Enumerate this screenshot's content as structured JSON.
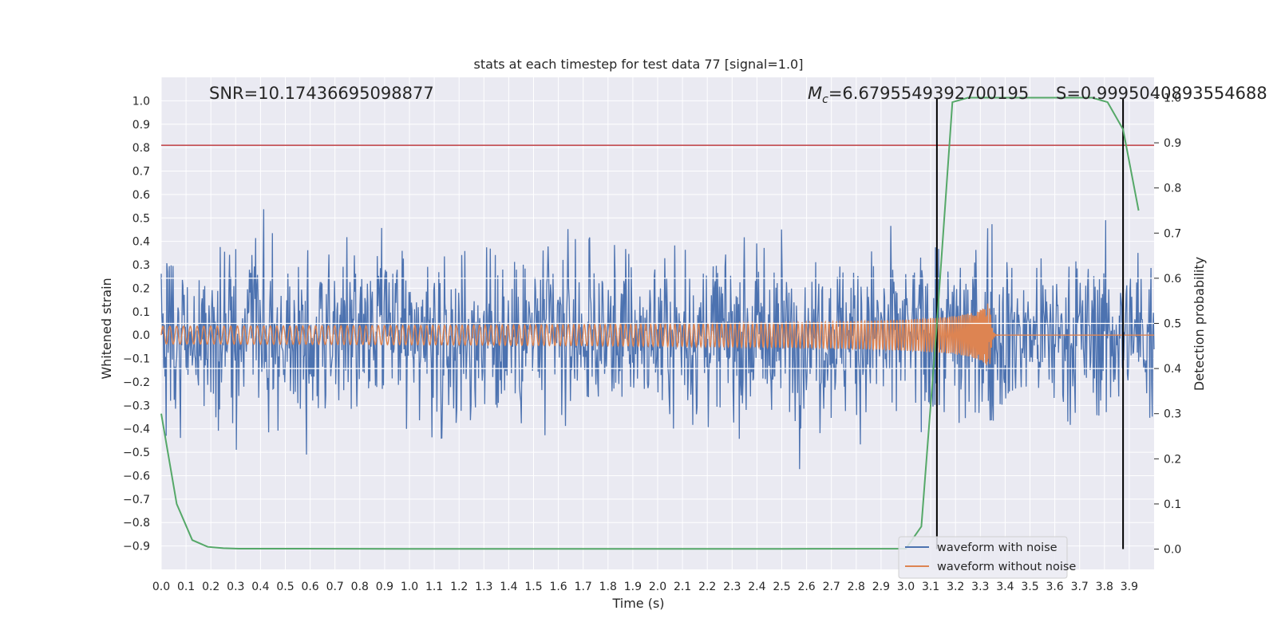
{
  "chart_data": {
    "type": "line",
    "title": "stats at each timestep for test data 77 [signal=1.0]",
    "xlabel": "Time (s)",
    "ylabel": "Whitened strain",
    "y2label": "Detection probability",
    "xlim": [
      0.0,
      4.0
    ],
    "ylim": [
      -1.0,
      1.1
    ],
    "y2lim": [
      -0.045,
      1.045
    ],
    "xticks": [
      "0.0",
      "0.1",
      "0.2",
      "0.3",
      "0.4",
      "0.5",
      "0.6",
      "0.7",
      "0.8",
      "0.9",
      "1.0",
      "1.1",
      "1.2",
      "1.3",
      "1.4",
      "1.5",
      "1.6",
      "1.7",
      "1.8",
      "1.9",
      "2.0",
      "2.1",
      "2.2",
      "2.3",
      "2.4",
      "2.5",
      "2.6",
      "2.7",
      "2.8",
      "2.9",
      "3.0",
      "3.1",
      "3.2",
      "3.3",
      "3.4",
      "3.5",
      "3.6",
      "3.7",
      "3.8",
      "3.9"
    ],
    "yticks": [
      "1.0",
      "0.9",
      "0.8",
      "0.7",
      "0.6",
      "0.5",
      "0.4",
      "0.3",
      "0.2",
      "0.1",
      "0.0",
      "−0.1",
      "−0.2",
      "−0.3",
      "−0.4",
      "−0.5",
      "−0.6",
      "−0.7",
      "−0.8",
      "−0.9"
    ],
    "y2ticks": [
      "1.0",
      "0.9",
      "0.8",
      "0.7",
      "0.6",
      "0.5",
      "0.4",
      "0.3",
      "0.2",
      "0.1",
      "0.0"
    ],
    "annotations": {
      "snr": "SNR=10.17436695098877",
      "mc_symbol": "M",
      "mc_sub": "c",
      "mc_value": "=6.6795549392700195",
      "s": "S=0.9995040893554688"
    },
    "threshold_line": {
      "axis": "y",
      "value": 0.81,
      "color": "#c44e52"
    },
    "vertical_lines": [
      3.125,
      3.875
    ],
    "secondary_hlines": [
      0.6,
      0.5,
      0.4
    ],
    "detection_probability": {
      "name": "detection probability",
      "axis": "y2",
      "color": "#55a868",
      "x": [
        0.0,
        0.0625,
        0.125,
        0.1875,
        0.25,
        0.3125,
        0.5,
        1.0,
        2.0,
        2.5,
        3.0,
        3.0625,
        3.125,
        3.1875,
        3.25,
        3.3125,
        3.5,
        3.75,
        3.8125,
        3.875,
        3.9375
      ],
      "y": [
        0.3,
        0.1,
        0.02,
        0.005,
        0.002,
        0.001,
        0.001,
        0.0005,
        0.0005,
        0.0005,
        0.001,
        0.05,
        0.5,
        0.99,
        1.0,
        1.0,
        1.0,
        1.0,
        0.99,
        0.93,
        0.75
      ]
    },
    "series": [
      {
        "name": "waveform with noise",
        "color": "#4c72b0"
      },
      {
        "name": "waveform without noise",
        "color": "#dd8452"
      }
    ],
    "legend": {
      "position": "bottom-right",
      "entries": [
        "waveform with noise",
        "waveform without noise"
      ]
    }
  }
}
